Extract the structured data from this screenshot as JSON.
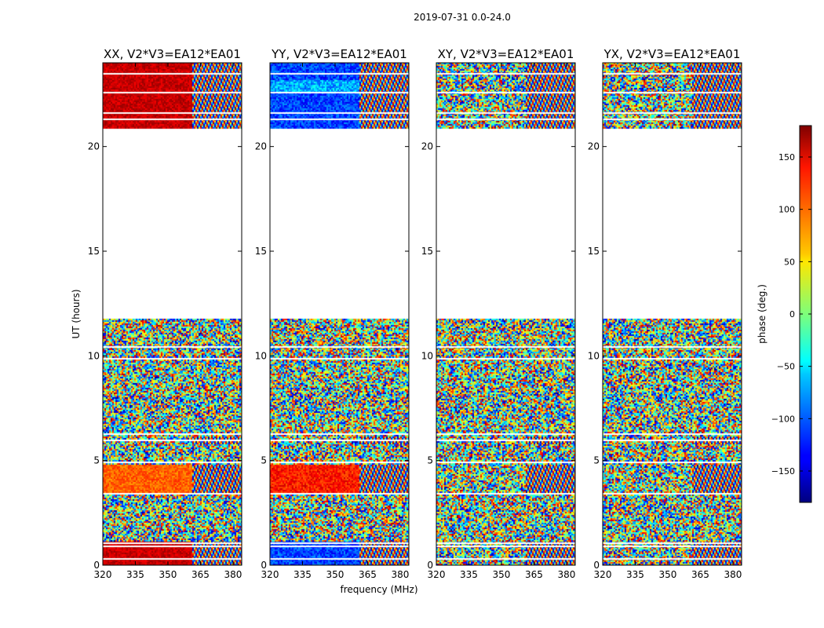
{
  "suptitle": "2019-07-31 0.0-24.0",
  "chart_data": {
    "type": "heatmap",
    "xlabel": "frequency (MHz)",
    "ylabel": "UT (hours)",
    "xlim": [
      320,
      384
    ],
    "ylim": [
      0,
      24
    ],
    "xticks": [
      {
        "value": 320,
        "label": "320"
      },
      {
        "value": 335,
        "label": "335"
      },
      {
        "value": 350,
        "label": "350"
      },
      {
        "value": 365,
        "label": "365"
      },
      {
        "value": 380,
        "label": "380"
      }
    ],
    "yticks": [
      {
        "value": 0,
        "label": "0"
      },
      {
        "value": 5,
        "label": "5"
      },
      {
        "value": 10,
        "label": "10"
      },
      {
        "value": 15,
        "label": "15"
      },
      {
        "value": 20,
        "label": "20"
      }
    ],
    "data_gap_hours": [
      11.8,
      20.9
    ],
    "panels": [
      {
        "title": "XX, V2*V3=EA12*EA01",
        "pol": "XX",
        "coherent_until_mhz": 361
      },
      {
        "title": "YY, V2*V3=EA12*EA01",
        "pol": "YY",
        "coherent_until_mhz": 361
      },
      {
        "title": "XY, V2*V3=EA12*EA01",
        "pol": "XY",
        "coherent_until_mhz": 361
      },
      {
        "title": "YX, V2*V3=EA12*EA01",
        "pol": "YX",
        "coherent_until_mhz": 361
      }
    ],
    "colorbar": {
      "label": "phase (deg.)",
      "range": [
        -180,
        180
      ],
      "colormap": "jet",
      "ticks": [
        {
          "value": 150,
          "label": "150"
        },
        {
          "value": 100,
          "label": "100"
        },
        {
          "value": 50,
          "label": "50"
        },
        {
          "value": 0,
          "label": "0"
        },
        {
          "value": -50,
          "label": "−50"
        },
        {
          "value": -100,
          "label": "−100"
        },
        {
          "value": -150,
          "label": "−150"
        }
      ]
    }
  }
}
